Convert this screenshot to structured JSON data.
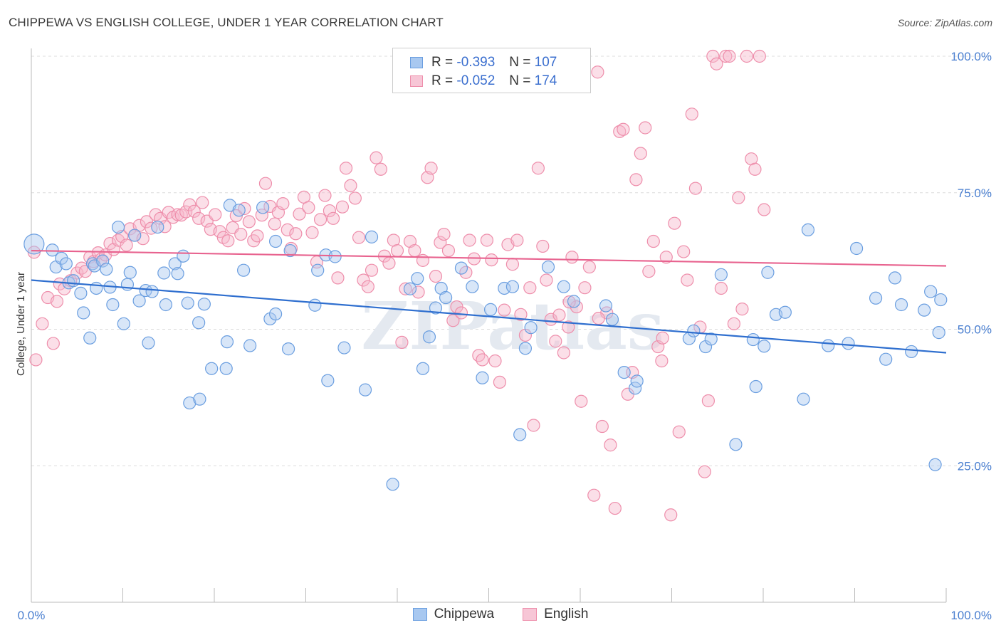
{
  "header": {
    "title": "CHIPPEWA VS ENGLISH COLLEGE, UNDER 1 YEAR CORRELATION CHART",
    "source": "Source: ZipAtlas.com"
  },
  "legend": {
    "rows": [
      {
        "r_label": "R =",
        "r_value": "-0.393",
        "n_label": "N =",
        "n_value": "107"
      },
      {
        "r_label": "R =",
        "r_value": "-0.052",
        "n_label": "N =",
        "n_value": "174"
      }
    ]
  },
  "bottom_legend": [
    "Chippewa",
    "English"
  ],
  "colors": {
    "chippewa_fill": "#a8c8f0",
    "chippewa_stroke": "#6a9ee0",
    "chippewa_line": "#2f6fcf",
    "english_fill": "#f7b8cc",
    "english_stroke": "#ee8eab",
    "english_line": "#e8638f",
    "tick_text": "#4a7fd0",
    "grid": "#dcdcdc"
  },
  "watermark": "ZIPatlas",
  "chart_data": {
    "type": "scatter",
    "title": "CHIPPEWA VS ENGLISH COLLEGE, UNDER 1 YEAR CORRELATION CHART",
    "xlabel": "",
    "ylabel": "College, Under 1 year",
    "xlim": [
      0,
      100
    ],
    "ylim": [
      0,
      103
    ],
    "x_tick_labels": [
      "0.0%",
      "100.0%"
    ],
    "y_ticks": [
      25,
      50,
      75,
      100
    ],
    "y_tick_labels": [
      "25.0%",
      "50.0%",
      "75.0%",
      "100.0%"
    ],
    "grid": true,
    "legend_position": "top-center",
    "series": [
      {
        "name": "Chippewa",
        "r": -0.393,
        "n": 107,
        "trend": {
          "x": [
            0,
            100
          ],
          "y": [
            59.0,
            45.7
          ]
        },
        "points": [
          [
            0.3,
            65.6
          ],
          [
            2.3,
            64.5
          ],
          [
            2.7,
            61.4
          ],
          [
            3.3,
            63.0
          ],
          [
            3.8,
            62.0
          ],
          [
            4.1,
            58.5
          ],
          [
            4.6,
            58.9
          ],
          [
            5.4,
            56.6
          ],
          [
            5.7,
            53.0
          ],
          [
            6.4,
            48.4
          ],
          [
            6.7,
            62.0
          ],
          [
            6.9,
            61.6
          ],
          [
            7.1,
            57.5
          ],
          [
            7.8,
            62.5
          ],
          [
            8.2,
            61.0
          ],
          [
            8.6,
            57.7
          ],
          [
            8.9,
            54.5
          ],
          [
            9.5,
            68.7
          ],
          [
            10.1,
            51.0
          ],
          [
            10.5,
            58.2
          ],
          [
            10.8,
            60.4
          ],
          [
            11.3,
            67.2
          ],
          [
            11.8,
            55.2
          ],
          [
            12.5,
            57.1
          ],
          [
            12.8,
            47.5
          ],
          [
            13.2,
            56.9
          ],
          [
            13.8,
            68.7
          ],
          [
            14.5,
            60.3
          ],
          [
            14.7,
            54.5
          ],
          [
            15.7,
            62.0
          ],
          [
            16.0,
            60.2
          ],
          [
            16.6,
            63.4
          ],
          [
            17.1,
            54.8
          ],
          [
            17.3,
            36.5
          ],
          [
            18.3,
            51.2
          ],
          [
            18.4,
            37.2
          ],
          [
            18.9,
            54.6
          ],
          [
            19.7,
            42.8
          ],
          [
            21.3,
            42.8
          ],
          [
            21.4,
            47.7
          ],
          [
            21.7,
            72.7
          ],
          [
            22.7,
            71.8
          ],
          [
            23.2,
            60.8
          ],
          [
            23.9,
            47.0
          ],
          [
            25.3,
            72.3
          ],
          [
            26.1,
            51.9
          ],
          [
            26.7,
            52.8
          ],
          [
            26.7,
            66.1
          ],
          [
            28.1,
            46.4
          ],
          [
            28.3,
            64.4
          ],
          [
            31.0,
            54.4
          ],
          [
            31.3,
            60.8
          ],
          [
            32.2,
            63.6
          ],
          [
            32.4,
            40.6
          ],
          [
            33.2,
            63.3
          ],
          [
            34.2,
            46.6
          ],
          [
            36.5,
            38.9
          ],
          [
            37.2,
            66.9
          ],
          [
            39.5,
            21.6
          ],
          [
            41.4,
            57.4
          ],
          [
            42.2,
            59.3
          ],
          [
            42.8,
            42.8
          ],
          [
            43.5,
            48.6
          ],
          [
            44.2,
            53.9
          ],
          [
            44.8,
            57.5
          ],
          [
            45.3,
            55.8
          ],
          [
            47.0,
            61.2
          ],
          [
            48.2,
            57.8
          ],
          [
            49.3,
            41.1
          ],
          [
            50.2,
            53.6
          ],
          [
            51.7,
            57.5
          ],
          [
            52.6,
            57.8
          ],
          [
            53.4,
            30.7
          ],
          [
            54.0,
            46.5
          ],
          [
            54.6,
            50.3
          ],
          [
            56.5,
            61.4
          ],
          [
            58.2,
            57.8
          ],
          [
            59.3,
            55.1
          ],
          [
            62.8,
            54.3
          ],
          [
            63.5,
            51.8
          ],
          [
            64.8,
            42.1
          ],
          [
            66.0,
            39.2
          ],
          [
            66.2,
            40.5
          ],
          [
            71.9,
            48.3
          ],
          [
            72.4,
            49.7
          ],
          [
            73.7,
            46.8
          ],
          [
            74.3,
            48.2
          ],
          [
            75.4,
            60.0
          ],
          [
            77.0,
            28.9
          ],
          [
            78.9,
            48.1
          ],
          [
            79.2,
            39.5
          ],
          [
            80.1,
            46.9
          ],
          [
            80.5,
            60.4
          ],
          [
            81.4,
            52.7
          ],
          [
            82.4,
            53.1
          ],
          [
            84.4,
            37.2
          ],
          [
            84.9,
            68.2
          ],
          [
            87.1,
            47.0
          ],
          [
            89.3,
            47.4
          ],
          [
            90.2,
            64.8
          ],
          [
            92.3,
            55.7
          ],
          [
            93.4,
            44.5
          ],
          [
            94.4,
            59.4
          ],
          [
            95.1,
            54.5
          ],
          [
            96.2,
            45.9
          ],
          [
            97.6,
            53.5
          ],
          [
            98.3,
            56.9
          ],
          [
            98.8,
            25.2
          ],
          [
            99.2,
            49.4
          ],
          [
            99.4,
            55.4
          ]
        ]
      },
      {
        "name": "English",
        "r": -0.052,
        "n": 174,
        "trend": {
          "x": [
            0,
            100
          ],
          "y": [
            64.4,
            61.6
          ]
        },
        "points": [
          [
            0.3,
            64.1
          ],
          [
            0.5,
            44.4
          ],
          [
            1.2,
            51.0
          ],
          [
            1.8,
            55.8
          ],
          [
            2.4,
            47.4
          ],
          [
            2.8,
            55.1
          ],
          [
            3.1,
            58.3
          ],
          [
            3.6,
            57.4
          ],
          [
            4.3,
            58.9
          ],
          [
            5.0,
            60.3
          ],
          [
            5.5,
            61.2
          ],
          [
            5.9,
            60.6
          ],
          [
            6.4,
            63.2
          ],
          [
            6.8,
            62.4
          ],
          [
            7.3,
            64.0
          ],
          [
            7.6,
            62.8
          ],
          [
            8.1,
            63.6
          ],
          [
            8.6,
            65.7
          ],
          [
            9.0,
            64.6
          ],
          [
            9.5,
            66.3
          ],
          [
            9.9,
            67.0
          ],
          [
            10.4,
            65.4
          ],
          [
            10.8,
            68.4
          ],
          [
            11.3,
            67.2
          ],
          [
            11.8,
            69.0
          ],
          [
            12.2,
            66.6
          ],
          [
            12.6,
            69.7
          ],
          [
            13.1,
            68.5
          ],
          [
            13.6,
            71.0
          ],
          [
            14.1,
            70.3
          ],
          [
            14.6,
            68.8
          ],
          [
            15.0,
            71.4
          ],
          [
            15.5,
            70.5
          ],
          [
            16.0,
            71.0
          ],
          [
            16.4,
            70.9
          ],
          [
            16.9,
            71.5
          ],
          [
            17.3,
            72.8
          ],
          [
            17.8,
            71.6
          ],
          [
            18.3,
            70.3
          ],
          [
            18.7,
            73.2
          ],
          [
            19.2,
            69.8
          ],
          [
            19.6,
            68.3
          ],
          [
            20.1,
            71.0
          ],
          [
            20.6,
            67.9
          ],
          [
            21.0,
            66.8
          ],
          [
            21.5,
            66.2
          ],
          [
            22.0,
            68.6
          ],
          [
            22.4,
            70.8
          ],
          [
            22.9,
            67.4
          ],
          [
            23.3,
            72.1
          ],
          [
            23.8,
            69.7
          ],
          [
            24.3,
            66.2
          ],
          [
            24.7,
            67.1
          ],
          [
            25.2,
            70.9
          ],
          [
            25.6,
            76.7
          ],
          [
            26.1,
            72.5
          ],
          [
            26.6,
            69.3
          ],
          [
            27.0,
            71.4
          ],
          [
            27.5,
            73.0
          ],
          [
            28.0,
            68.2
          ],
          [
            28.4,
            64.8
          ],
          [
            28.9,
            67.5
          ],
          [
            29.3,
            71.1
          ],
          [
            29.8,
            74.2
          ],
          [
            30.3,
            72.3
          ],
          [
            30.7,
            67.7
          ],
          [
            31.2,
            62.3
          ],
          [
            31.6,
            70.1
          ],
          [
            32.1,
            74.5
          ],
          [
            32.6,
            71.7
          ],
          [
            33.0,
            70.3
          ],
          [
            33.5,
            59.4
          ],
          [
            34.0,
            72.4
          ],
          [
            34.4,
            79.5
          ],
          [
            34.9,
            76.3
          ],
          [
            35.4,
            74.0
          ],
          [
            35.8,
            66.8
          ],
          [
            36.3,
            59.0
          ],
          [
            36.8,
            57.8
          ],
          [
            37.2,
            60.8
          ],
          [
            37.7,
            81.4
          ],
          [
            38.2,
            79.3
          ],
          [
            38.6,
            63.4
          ],
          [
            39.1,
            62.1
          ],
          [
            39.6,
            66.3
          ],
          [
            40.0,
            64.4
          ],
          [
            40.5,
            47.6
          ],
          [
            40.9,
            57.4
          ],
          [
            41.4,
            66.1
          ],
          [
            41.9,
            64.4
          ],
          [
            42.3,
            56.8
          ],
          [
            42.8,
            62.6
          ],
          [
            43.3,
            77.8
          ],
          [
            43.7,
            79.5
          ],
          [
            44.2,
            59.7
          ],
          [
            44.7,
            65.9
          ],
          [
            45.1,
            67.4
          ],
          [
            45.6,
            64.4
          ],
          [
            46.1,
            51.6
          ],
          [
            46.5,
            54.1
          ],
          [
            47.0,
            53.0
          ],
          [
            47.5,
            60.4
          ],
          [
            47.9,
            66.3
          ],
          [
            48.4,
            62.9
          ],
          [
            48.9,
            45.2
          ],
          [
            49.3,
            44.4
          ],
          [
            49.8,
            66.3
          ],
          [
            50.3,
            62.7
          ],
          [
            50.7,
            44.2
          ],
          [
            51.2,
            40.3
          ],
          [
            51.7,
            53.5
          ],
          [
            52.1,
            65.5
          ],
          [
            52.6,
            61.9
          ],
          [
            53.1,
            66.3
          ],
          [
            53.5,
            52.7
          ],
          [
            54.0,
            48.9
          ],
          [
            54.5,
            57.6
          ],
          [
            54.9,
            32.4
          ],
          [
            55.4,
            79.5
          ],
          [
            55.9,
            65.2
          ],
          [
            56.3,
            59.0
          ],
          [
            56.8,
            51.8
          ],
          [
            57.3,
            47.8
          ],
          [
            57.7,
            52.6
          ],
          [
            58.2,
            45.7
          ],
          [
            58.7,
            50.4
          ],
          [
            59.1,
            63.2
          ],
          [
            59.6,
            54.1
          ],
          [
            60.1,
            36.8
          ],
          [
            60.5,
            57.6
          ],
          [
            61.0,
            61.4
          ],
          [
            61.5,
            19.6
          ],
          [
            61.9,
            97.1
          ],
          [
            62.4,
            32.2
          ],
          [
            62.9,
            53.0
          ],
          [
            63.3,
            28.8
          ],
          [
            63.8,
            17.2
          ],
          [
            64.3,
            86.2
          ],
          [
            64.7,
            86.6
          ],
          [
            65.2,
            38.1
          ],
          [
            65.7,
            42.1
          ],
          [
            66.1,
            77.4
          ],
          [
            66.6,
            82.2
          ],
          [
            67.1,
            86.9
          ],
          [
            67.5,
            60.6
          ],
          [
            68.0,
            66.1
          ],
          [
            68.5,
            46.8
          ],
          [
            68.9,
            44.2
          ],
          [
            69.4,
            63.2
          ],
          [
            69.9,
            16.0
          ],
          [
            70.3,
            69.4
          ],
          [
            70.8,
            31.2
          ],
          [
            71.3,
            64.2
          ],
          [
            71.7,
            59.0
          ],
          [
            72.2,
            89.4
          ],
          [
            72.6,
            75.8
          ],
          [
            73.1,
            50.4
          ],
          [
            73.6,
            23.9
          ],
          [
            74.0,
            36.9
          ],
          [
            74.5,
            100.0
          ],
          [
            74.9,
            98.6
          ],
          [
            75.4,
            57.5
          ],
          [
            75.9,
            100.0
          ],
          [
            76.3,
            100.0
          ],
          [
            76.8,
            51.0
          ],
          [
            77.3,
            74.1
          ],
          [
            77.7,
            53.7
          ],
          [
            78.2,
            100.0
          ],
          [
            78.7,
            81.2
          ],
          [
            79.1,
            79.3
          ],
          [
            79.6,
            100.0
          ],
          [
            80.1,
            71.9
          ],
          [
            69.0,
            48.4
          ],
          [
            58.8,
            55.0
          ],
          [
            62.0,
            52.0
          ]
        ]
      }
    ]
  }
}
